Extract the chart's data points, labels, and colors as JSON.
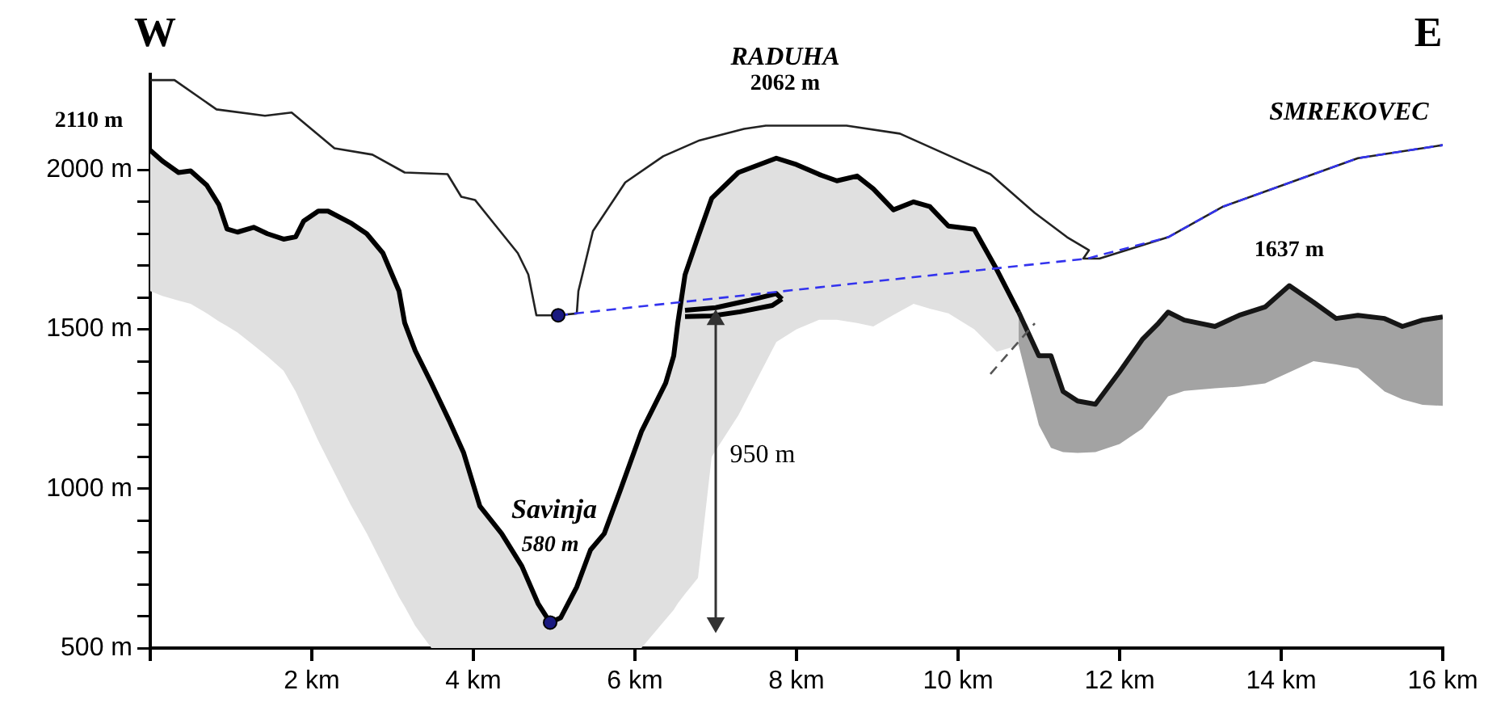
{
  "chart_data": {
    "type": "line",
    "xlim": [
      0,
      16
    ],
    "ylim": [
      500,
      2300
    ],
    "xticks": [
      {
        "value": 0,
        "label": null
      },
      {
        "value": 2,
        "label": "2 km"
      },
      {
        "value": 4,
        "label": "4 km"
      },
      {
        "value": 6,
        "label": "6 km"
      },
      {
        "value": 8,
        "label": "8 km"
      },
      {
        "value": 10,
        "label": "10 km"
      },
      {
        "value": 12,
        "label": "12 km"
      },
      {
        "value": 14,
        "label": "14 km"
      },
      {
        "value": 16,
        "label": "16 km"
      }
    ],
    "yticks": [
      {
        "value": 500,
        "label": "500 m"
      },
      {
        "value": 600,
        "label": null
      },
      {
        "value": 700,
        "label": null
      },
      {
        "value": 800,
        "label": null
      },
      {
        "value": 900,
        "label": null
      },
      {
        "value": 1000,
        "label": "1000 m"
      },
      {
        "value": 1100,
        "label": null
      },
      {
        "value": 1200,
        "label": null
      },
      {
        "value": 1300,
        "label": null
      },
      {
        "value": 1400,
        "label": null
      },
      {
        "value": 1500,
        "label": "1500 m"
      },
      {
        "value": 1600,
        "label": null
      },
      {
        "value": 1700,
        "label": null
      },
      {
        "value": 1800,
        "label": null
      },
      {
        "value": 1900,
        "label": null
      },
      {
        "value": 2000,
        "label": "2000 m"
      }
    ],
    "grid": false,
    "legend": false,
    "series": [
      {
        "color": "#000000",
        "x": [
          0,
          0.15,
          0.35,
          0.5,
          0.7,
          0.85,
          0.95,
          1.08,
          1.28,
          1.45,
          1.65,
          1.8,
          1.9,
          2.08,
          2.2,
          2.48,
          2.68,
          2.88,
          3.08,
          3.15,
          3.28,
          3.48,
          3.7,
          3.88,
          4.08,
          4.35,
          4.6,
          4.8,
          4.95,
          5.08,
          5.28,
          5.45,
          5.62,
          5.82,
          6.08,
          6.38,
          6.48,
          6.53,
          6.62,
          6.78,
          6.95,
          7.28,
          7.75,
          8.0,
          8.28,
          8.5,
          8.75,
          8.95,
          9.2,
          9.45,
          9.65,
          9.88,
          10.2,
          10.48,
          10.75
        ],
        "values": [
          2062,
          2028,
          1992,
          1997,
          1952,
          1891,
          1815,
          1805,
          1820,
          1800,
          1783,
          1790,
          1840,
          1871,
          1871,
          1834,
          1800,
          1739,
          1620,
          1520,
          1433,
          1331,
          1214,
          1112,
          945,
          859,
          757,
          640,
          580,
          595,
          692,
          808,
          859,
          996,
          1179,
          1331,
          1417,
          1519,
          1671,
          1789,
          1911,
          1992,
          2037,
          2017,
          1986,
          1966,
          1981,
          1941,
          1875,
          1900,
          1885,
          1824,
          1814,
          1687,
          1554
        ],
        "upper": [
          2062,
          2028,
          1992,
          1997,
          1952,
          1891,
          1815,
          1805,
          1820,
          1800,
          1783,
          1790,
          1840,
          1871,
          1871,
          1834,
          1800,
          1739,
          1620,
          1520,
          1433,
          1331,
          1214,
          1112,
          945,
          859,
          757,
          640,
          580,
          595,
          692,
          808,
          859,
          996,
          1179,
          1331,
          1417,
          1519,
          1671,
          1789,
          1911,
          1992,
          2037,
          2017,
          1986,
          1966,
          1981,
          1941,
          1875,
          1900,
          1885,
          1824,
          1814,
          1687,
          1554
        ],
        "lower": [
          1620,
          1605,
          1590,
          1580,
          1550,
          1525,
          1510,
          1490,
          1450,
          1415,
          1370,
          1305,
          1250,
          1150,
          1090,
          950,
          860,
          760,
          660,
          630,
          570,
          500,
          500,
          500,
          500,
          500,
          500,
          500,
          500,
          500,
          500,
          500,
          500,
          500,
          500,
          590,
          620,
          640,
          670,
          720,
          1100,
          1230,
          1460,
          1500,
          1530,
          1530,
          1520,
          1509,
          1545,
          1580,
          1565,
          1550,
          1500,
          1430,
          1450
        ]
      },
      {
        "color": "#161616",
        "x": [
          10.75,
          11.0,
          11.15,
          11.3,
          11.48,
          11.7,
          12.0,
          12.28,
          12.48,
          12.6,
          12.8,
          13.18,
          13.48,
          13.8,
          14.1,
          14.4,
          14.68,
          14.95,
          15.28,
          15.5,
          15.75,
          16.0
        ],
        "values": [
          1554,
          1417,
          1417,
          1305,
          1275,
          1265,
          1367,
          1468,
          1519,
          1554,
          1529,
          1509,
          1544,
          1570,
          1637,
          1585,
          1534,
          1544,
          1534,
          1509,
          1529,
          1539
        ],
        "upper": [
          1554,
          1417,
          1417,
          1305,
          1275,
          1265,
          1367,
          1468,
          1519,
          1554,
          1529,
          1509,
          1544,
          1570,
          1637,
          1585,
          1534,
          1544,
          1534,
          1509,
          1529,
          1539
        ],
        "lower": [
          1450,
          1200,
          1128,
          1115,
          1112,
          1115,
          1140,
          1188,
          1250,
          1290,
          1307,
          1315,
          1320,
          1330,
          1365,
          1400,
          1390,
          1377,
          1305,
          1280,
          1263,
          1260
        ]
      },
      {
        "color": "#000000",
        "x": [
          6.62,
          7.0,
          7.4,
          7.75,
          7.82
        ],
        "values": [
          1560,
          1568,
          1590,
          1612,
          1595
        ]
      },
      {
        "color": "#000000",
        "x": [
          6.62,
          6.95,
          7.3,
          7.7,
          7.82
        ],
        "values": [
          1540,
          1542,
          1555,
          1575,
          1595
        ]
      },
      {
        "color": "#222222",
        "x": [
          0,
          0.3,
          0.82,
          1.42,
          1.75,
          2.28,
          2.75,
          3.15,
          3.68,
          3.85,
          4.02,
          4.28,
          4.55,
          4.68,
          4.78,
          5.05,
          5.28,
          5.3,
          5.48,
          5.88,
          6.35,
          6.8,
          7.35,
          7.62,
          8.62,
          9.28,
          9.95,
          10.4,
          10.95,
          11.35,
          11.62,
          11.55,
          11.75,
          12.6,
          13.28,
          14.28,
          14.95,
          16
        ],
        "values": [
          2282,
          2282,
          2190,
          2170,
          2180,
          2068,
          2048,
          1992,
          1987,
          1916,
          1906,
          1824,
          1739,
          1672,
          1544,
          1544,
          1550,
          1620,
          1808,
          1961,
          2043,
          2093,
          2129,
          2139,
          2139,
          2114,
          2038,
          1987,
          1865,
          1789,
          1748,
          1722,
          1722,
          1789,
          1885,
          1976,
          2037,
          2078
        ]
      },
      {
        "color": "#3333ee",
        "line_style": "dashed",
        "x": [
          5.05,
          11.6,
          12.6,
          13.28,
          14.28,
          14.95,
          16
        ],
        "values": [
          1544,
          1722,
          1789,
          1885,
          1976,
          2037,
          2078
        ]
      },
      {
        "color": "#555555",
        "line_style": "dashed",
        "x": [
          10.4,
          10.95
        ],
        "values": [
          1360,
          1519
        ]
      },
      {
        "color": "#333333",
        "marker": "triangle",
        "x": [
          7,
          7
        ],
        "values": [
          580,
          1530
        ]
      },
      {
        "type": "scatter",
        "color": "#1a1a80",
        "marker": "circle",
        "x": [
          5.05,
          4.95
        ],
        "values": [
          1544,
          580
        ]
      }
    ],
    "annotations": [
      "W",
      "E",
      "2110 m",
      "RADUHA",
      "2062 m",
      "SMREKOVEC",
      {
        "text": "1637 m",
        "x": 14.1,
        "y": 1637
      },
      "Savinja",
      {
        "text": "580 m",
        "x": 4.95,
        "y": 580
      },
      "950 m"
    ]
  }
}
